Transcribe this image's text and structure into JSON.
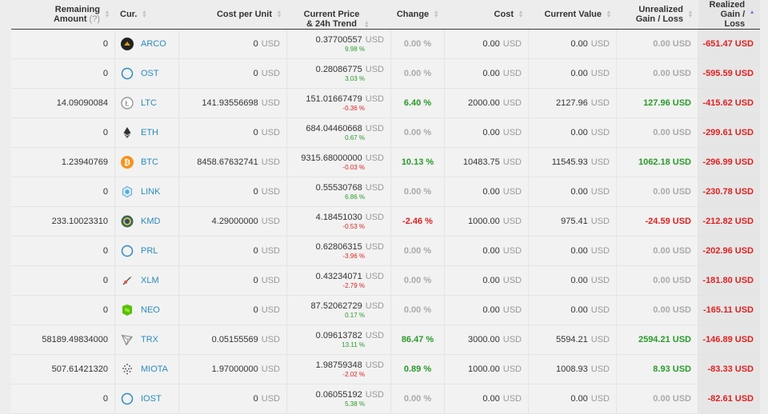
{
  "headers": {
    "remaining": "Remaining",
    "amount": "Amount",
    "amount_q": "(?)",
    "cur": "Cur.",
    "cost_per_unit": "Cost per Unit",
    "current_price": "Current Price",
    "trend": "& 24h Trend",
    "change": "Change",
    "cost": "Cost",
    "current_value": "Current Value",
    "unrealized": "Unrealized",
    "unrealized2": "Gain / Loss",
    "realized": "Realized",
    "realized2": "Gain / Loss"
  },
  "currency_unit": "USD",
  "sort_arrow": "▲",
  "rows": [
    {
      "amount": "0",
      "symbol": "ARCO",
      "icon": "arco-icon",
      "cpu": "0",
      "price": "0.37700557",
      "trend": "9.98 %",
      "change": "0.00 %",
      "cost": "0.00",
      "value": "0.00",
      "unreal": "0.00 USD",
      "real": "-651.47 USD"
    },
    {
      "amount": "0",
      "symbol": "OST",
      "icon": "ost-icon",
      "cpu": "0",
      "price": "0.28086775",
      "trend": "3.03 %",
      "change": "0.00 %",
      "cost": "0.00",
      "value": "0.00",
      "unreal": "0.00 USD",
      "real": "-595.59 USD"
    },
    {
      "amount": "14.09090084",
      "symbol": "LTC",
      "icon": "ltc-icon",
      "cpu": "141.93556698",
      "price": "151.01667479",
      "trend": "-0.36 %",
      "change": "6.40 %",
      "cost": "2000.00",
      "value": "2127.96",
      "unreal": "127.96 USD",
      "real": "-415.62 USD"
    },
    {
      "amount": "0",
      "symbol": "ETH",
      "icon": "eth-icon",
      "cpu": "0",
      "price": "684.04460668",
      "trend": "0.67 %",
      "change": "0.00 %",
      "cost": "0.00",
      "value": "0.00",
      "unreal": "0.00 USD",
      "real": "-299.61 USD"
    },
    {
      "amount": "1.23940769",
      "symbol": "BTC",
      "icon": "btc-icon",
      "cpu": "8458.67632741",
      "price": "9315.68000000",
      "trend": "-0.03 %",
      "change": "10.13 %",
      "cost": "10483.75",
      "value": "11545.93",
      "unreal": "1062.18 USD",
      "real": "-296.99 USD"
    },
    {
      "amount": "0",
      "symbol": "LINK",
      "icon": "link-icon",
      "cpu": "0",
      "price": "0.55530768",
      "trend": "6.86 %",
      "change": "0.00 %",
      "cost": "0.00",
      "value": "0.00",
      "unreal": "0.00 USD",
      "real": "-230.78 USD"
    },
    {
      "amount": "233.10023310",
      "symbol": "KMD",
      "icon": "kmd-icon",
      "cpu": "4.29000000",
      "price": "4.18451030",
      "trend": "-0.53 %",
      "change": "-2.46 %",
      "cost": "1000.00",
      "value": "975.41",
      "unreal": "-24.59 USD",
      "real": "-212.82 USD"
    },
    {
      "amount": "0",
      "symbol": "PRL",
      "icon": "prl-icon",
      "cpu": "0",
      "price": "0.62806315",
      "trend": "-3.96 %",
      "change": "0.00 %",
      "cost": "0.00",
      "value": "0.00",
      "unreal": "0.00 USD",
      "real": "-202.96 USD"
    },
    {
      "amount": "0",
      "symbol": "XLM",
      "icon": "xlm-icon",
      "cpu": "0",
      "price": "0.43234071",
      "trend": "-2.79 %",
      "change": "0.00 %",
      "cost": "0.00",
      "value": "0.00",
      "unreal": "0.00 USD",
      "real": "-181.80 USD"
    },
    {
      "amount": "0",
      "symbol": "NEO",
      "icon": "neo-icon",
      "cpu": "0",
      "price": "87.52062729",
      "trend": "0.17 %",
      "change": "0.00 %",
      "cost": "0.00",
      "value": "0.00",
      "unreal": "0.00 USD",
      "real": "-165.11 USD"
    },
    {
      "amount": "58189.49834000",
      "symbol": "TRX",
      "icon": "trx-icon",
      "cpu": "0.05155569",
      "price": "0.09613782",
      "trend": "13.11 %",
      "change": "86.47 %",
      "cost": "3000.00",
      "value": "5594.21",
      "unreal": "2594.21 USD",
      "real": "-146.89 USD"
    },
    {
      "amount": "507.61421320",
      "symbol": "MIOTA",
      "icon": "miota-icon",
      "cpu": "1.97000000",
      "price": "1.98759348",
      "trend": "-2.02 %",
      "change": "0.89 %",
      "cost": "1000.00",
      "value": "1008.93",
      "unreal": "8.93 USD",
      "real": "-83.33 USD"
    },
    {
      "amount": "0",
      "symbol": "IOST",
      "icon": "iost-icon",
      "cpu": "0",
      "price": "0.06055192",
      "trend": "5.38 %",
      "change": "0.00 %",
      "cost": "0.00",
      "value": "0.00",
      "unreal": "0.00 USD",
      "real": "-82.61 USD"
    }
  ],
  "colors": {
    "positive": "#2a9a2a",
    "negative": "#e02020",
    "neutral": "#aaaaaa",
    "link": "#2a8bbf",
    "sort_active": "#6c7ae0"
  }
}
